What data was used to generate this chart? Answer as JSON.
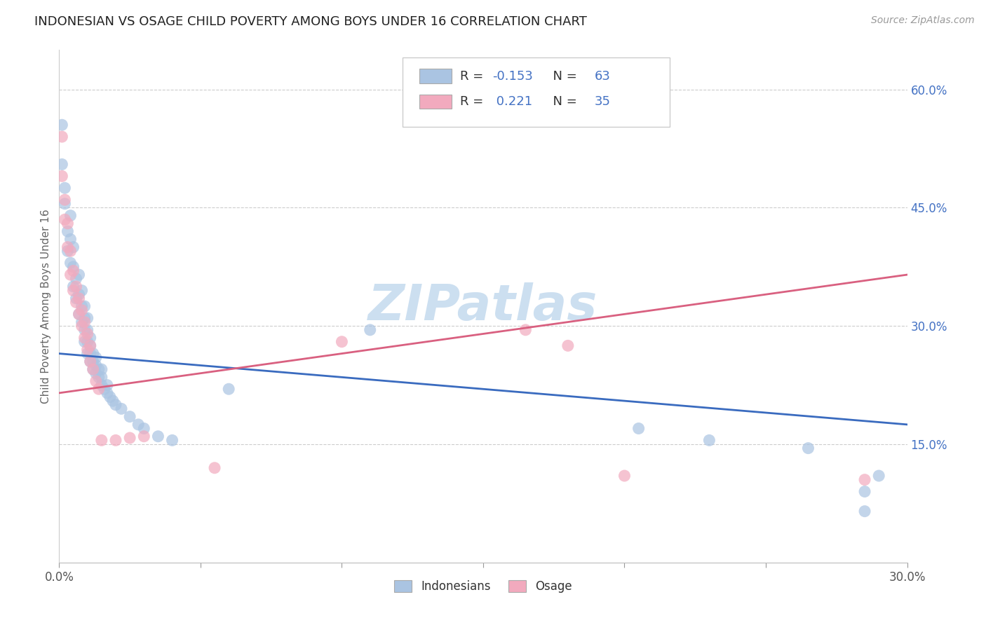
{
  "title": "INDONESIAN VS OSAGE CHILD POVERTY AMONG BOYS UNDER 16 CORRELATION CHART",
  "source": "Source: ZipAtlas.com",
  "ylabel": "Child Poverty Among Boys Under 16",
  "xlim": [
    0.0,
    0.3
  ],
  "ylim": [
    0.0,
    0.65
  ],
  "xtick_positions": [
    0.0,
    0.05,
    0.1,
    0.15,
    0.2,
    0.25,
    0.3
  ],
  "xtick_labels": [
    "0.0%",
    "",
    "",
    "",
    "",
    "",
    "30.0%"
  ],
  "ytick_positions": [
    0.15,
    0.3,
    0.45,
    0.6
  ],
  "ytick_labels": [
    "15.0%",
    "30.0%",
    "45.0%",
    "60.0%"
  ],
  "r_blue": "-0.153",
  "n_blue": "63",
  "r_pink": "0.221",
  "n_pink": "35",
  "blue_color": "#aac4e2",
  "pink_color": "#f2aabe",
  "line_blue_color": "#3a6bbf",
  "line_pink_color": "#d96080",
  "watermark": "ZIPatlas",
  "watermark_color": "#ccdff0",
  "legend_label1": "Indonesians",
  "legend_label2": "Osage",
  "blue_points": [
    [
      0.001,
      0.555
    ],
    [
      0.001,
      0.505
    ],
    [
      0.002,
      0.455
    ],
    [
      0.002,
      0.475
    ],
    [
      0.003,
      0.395
    ],
    [
      0.003,
      0.42
    ],
    [
      0.004,
      0.38
    ],
    [
      0.004,
      0.41
    ],
    [
      0.004,
      0.44
    ],
    [
      0.005,
      0.35
    ],
    [
      0.005,
      0.375
    ],
    [
      0.005,
      0.4
    ],
    [
      0.006,
      0.335
    ],
    [
      0.006,
      0.36
    ],
    [
      0.007,
      0.315
    ],
    [
      0.007,
      0.34
    ],
    [
      0.007,
      0.365
    ],
    [
      0.008,
      0.305
    ],
    [
      0.008,
      0.325
    ],
    [
      0.008,
      0.345
    ],
    [
      0.009,
      0.28
    ],
    [
      0.009,
      0.295
    ],
    [
      0.009,
      0.31
    ],
    [
      0.009,
      0.325
    ],
    [
      0.01,
      0.265
    ],
    [
      0.01,
      0.28
    ],
    [
      0.01,
      0.295
    ],
    [
      0.01,
      0.31
    ],
    [
      0.011,
      0.255
    ],
    [
      0.011,
      0.265
    ],
    [
      0.011,
      0.275
    ],
    [
      0.011,
      0.285
    ],
    [
      0.012,
      0.245
    ],
    [
      0.012,
      0.255
    ],
    [
      0.012,
      0.265
    ],
    [
      0.013,
      0.24
    ],
    [
      0.013,
      0.25
    ],
    [
      0.013,
      0.26
    ],
    [
      0.014,
      0.235
    ],
    [
      0.014,
      0.245
    ],
    [
      0.015,
      0.225
    ],
    [
      0.015,
      0.235
    ],
    [
      0.015,
      0.245
    ],
    [
      0.016,
      0.22
    ],
    [
      0.017,
      0.215
    ],
    [
      0.017,
      0.225
    ],
    [
      0.018,
      0.21
    ],
    [
      0.019,
      0.205
    ],
    [
      0.02,
      0.2
    ],
    [
      0.022,
      0.195
    ],
    [
      0.025,
      0.185
    ],
    [
      0.028,
      0.175
    ],
    [
      0.03,
      0.17
    ],
    [
      0.035,
      0.16
    ],
    [
      0.04,
      0.155
    ],
    [
      0.06,
      0.22
    ],
    [
      0.11,
      0.295
    ],
    [
      0.205,
      0.17
    ],
    [
      0.23,
      0.155
    ],
    [
      0.265,
      0.145
    ],
    [
      0.285,
      0.065
    ],
    [
      0.285,
      0.09
    ],
    [
      0.29,
      0.11
    ]
  ],
  "pink_points": [
    [
      0.001,
      0.54
    ],
    [
      0.001,
      0.49
    ],
    [
      0.002,
      0.435
    ],
    [
      0.002,
      0.46
    ],
    [
      0.003,
      0.4
    ],
    [
      0.003,
      0.43
    ],
    [
      0.004,
      0.365
    ],
    [
      0.004,
      0.395
    ],
    [
      0.005,
      0.345
    ],
    [
      0.005,
      0.37
    ],
    [
      0.006,
      0.33
    ],
    [
      0.006,
      0.35
    ],
    [
      0.007,
      0.315
    ],
    [
      0.007,
      0.335
    ],
    [
      0.008,
      0.3
    ],
    [
      0.008,
      0.32
    ],
    [
      0.009,
      0.285
    ],
    [
      0.009,
      0.305
    ],
    [
      0.01,
      0.27
    ],
    [
      0.01,
      0.29
    ],
    [
      0.011,
      0.255
    ],
    [
      0.011,
      0.275
    ],
    [
      0.012,
      0.245
    ],
    [
      0.013,
      0.23
    ],
    [
      0.014,
      0.22
    ],
    [
      0.015,
      0.155
    ],
    [
      0.02,
      0.155
    ],
    [
      0.025,
      0.158
    ],
    [
      0.03,
      0.16
    ],
    [
      0.055,
      0.12
    ],
    [
      0.1,
      0.28
    ],
    [
      0.165,
      0.295
    ],
    [
      0.18,
      0.275
    ],
    [
      0.2,
      0.11
    ],
    [
      0.285,
      0.105
    ]
  ],
  "blue_line_x": [
    0.0,
    0.3
  ],
  "blue_line_y": [
    0.265,
    0.175
  ],
  "pink_line_x": [
    0.0,
    0.3
  ],
  "pink_line_y": [
    0.215,
    0.365
  ]
}
